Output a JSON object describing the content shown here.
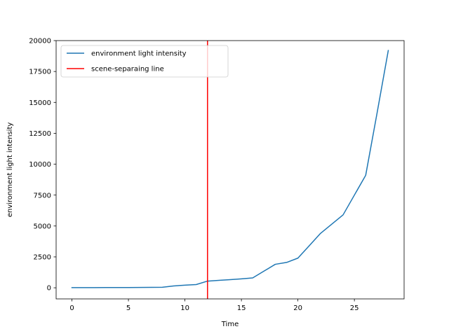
{
  "chart_data": {
    "type": "line",
    "title": "",
    "xlabel": "Time",
    "ylabel": "environment light intensity",
    "xlim": [
      -1.4,
      29.4
    ],
    "ylim": [
      -900,
      20000
    ],
    "xticks": [
      0,
      5,
      10,
      15,
      20,
      25
    ],
    "yticks": [
      0,
      2500,
      5000,
      7500,
      10000,
      12500,
      15000,
      17500,
      20000
    ],
    "grid": false,
    "legend_position": "top-left",
    "series": [
      {
        "name": "environment light intensity",
        "color": "#1f77b4",
        "x": [
          0,
          1,
          2,
          3,
          4,
          5,
          6,
          7,
          8,
          9,
          10,
          11,
          12,
          13,
          14,
          15,
          16,
          17,
          18,
          19,
          20,
          21,
          22,
          23,
          24,
          25,
          26,
          27,
          28
        ],
        "y": [
          10,
          12,
          14,
          17,
          20,
          24,
          28,
          33,
          40,
          150,
          210,
          260,
          540,
          600,
          660,
          720,
          800,
          1350,
          1900,
          2050,
          2400,
          3400,
          4400,
          5150,
          5900,
          7500,
          9100,
          14100,
          19200
        ]
      }
    ],
    "vlines": [
      {
        "name": "scene-separaing line",
        "color": "#ff0000",
        "x": 12
      }
    ]
  }
}
